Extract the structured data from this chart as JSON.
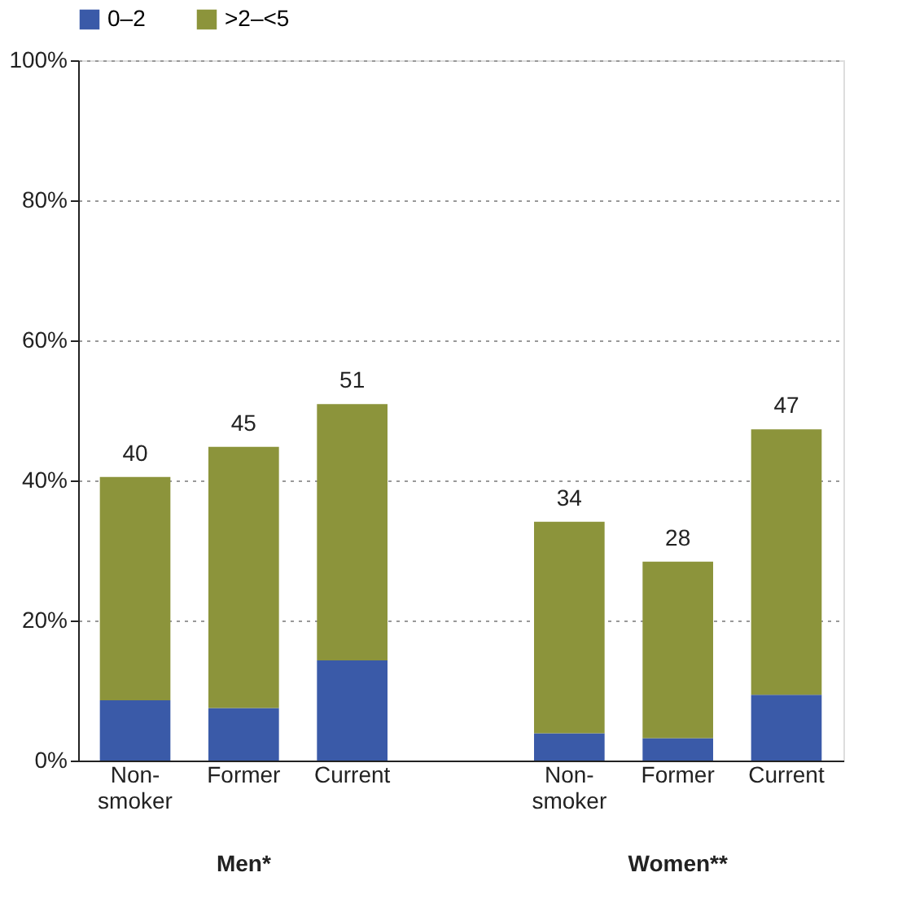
{
  "chart_data": {
    "type": "bar",
    "stacked": true,
    "categories": [
      "Non-smoker",
      "Former",
      "Current",
      null,
      "Non-smoker",
      "Former",
      "Current"
    ],
    "series": [
      {
        "name": "0–2",
        "color": "#3a5aa8",
        "values": [
          8.6,
          7.5,
          14.3,
          null,
          3.9,
          3.2,
          9.4
        ]
      },
      {
        "name": ">2–<5",
        "color": "#8c943b",
        "values": [
          31.9,
          37.3,
          36.6,
          null,
          30.2,
          25.2,
          37.9
        ]
      }
    ],
    "totals": [
      "40",
      "45",
      "51",
      null,
      "34",
      "28",
      "47"
    ],
    "ylim": [
      0,
      100
    ],
    "yticks": [
      {
        "value": 0,
        "label": "0%"
      },
      {
        "value": 20,
        "label": "20%"
      },
      {
        "value": 40,
        "label": "40%"
      },
      {
        "value": 60,
        "label": "60%"
      },
      {
        "value": 80,
        "label": "80%"
      },
      {
        "value": 100,
        "label": "100%"
      }
    ],
    "grid": "y",
    "legend": "top",
    "annotations": [
      "Men*",
      "Women**"
    ]
  }
}
